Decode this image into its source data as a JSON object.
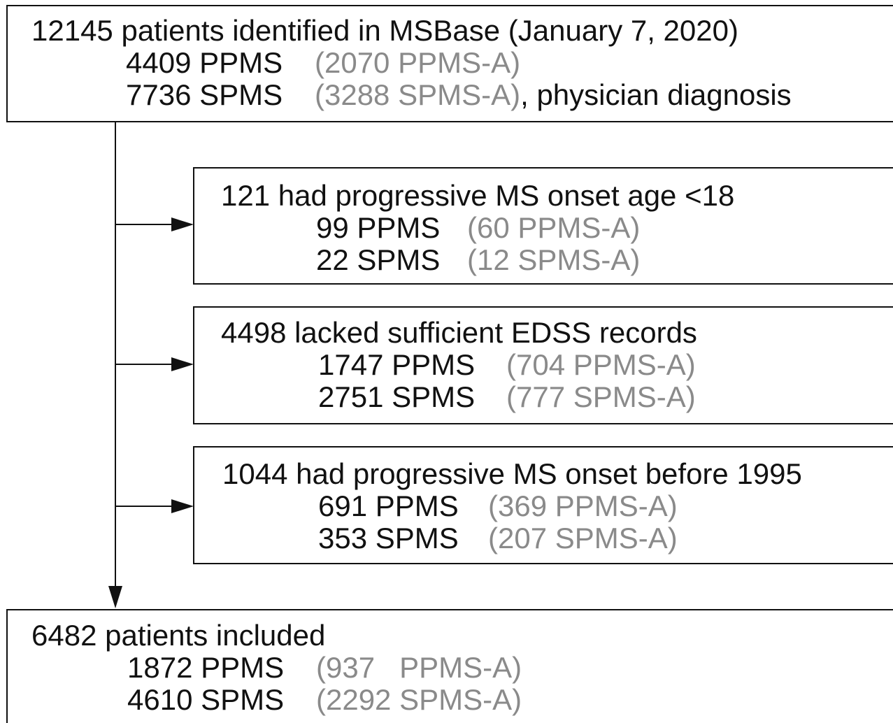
{
  "boxes": [
    {
      "title": "12145 patients identified in MSBase (January 7, 2020)",
      "lines": [
        {
          "text": "4409 PPMS",
          "note": "(2070 PPMS-A)"
        },
        {
          "text": "7736 SPMS",
          "note": "(3288 SPMS-A)",
          "suffix": ", physician diagnosis"
        }
      ]
    },
    {
      "title": "121 had progressive MS onset age <18",
      "lines": [
        {
          "text": "99 PPMS",
          "note": "(60 PPMS-A)"
        },
        {
          "text": "22 SPMS",
          "note": "(12 SPMS-A)"
        }
      ]
    },
    {
      "title": "4498 lacked sufficient EDSS records",
      "lines": [
        {
          "text": "1747 PPMS",
          "note": "(704 PPMS-A)"
        },
        {
          "text": "2751 SPMS",
          "note": "(777 SPMS-A)"
        }
      ]
    },
    {
      "title": "1044 had progressive MS onset before 1995",
      "lines": [
        {
          "text": "691 PPMS",
          "note": "(369 PPMS-A)"
        },
        {
          "text": "353 SPMS",
          "note": "(207 SPMS-A)"
        }
      ]
    },
    {
      "title": "6482 patients included",
      "lines": [
        {
          "text": "1872 PPMS",
          "note": "(937   PPMS-A)"
        },
        {
          "text": "4610 SPMS",
          "note": "(2292 SPMS-A)"
        }
      ]
    }
  ]
}
